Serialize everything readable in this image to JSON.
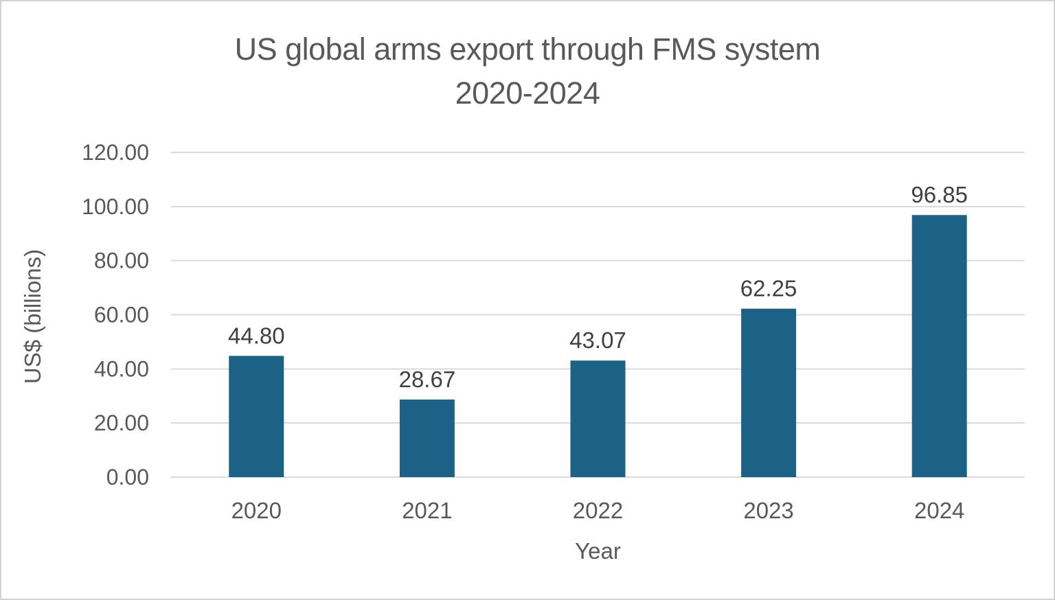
{
  "chart_data": {
    "type": "bar",
    "title": "US global arms export through FMS system",
    "title_line2": "2020-2024",
    "xlabel": "Year",
    "ylabel": "US$ (billions)",
    "categories": [
      "2020",
      "2021",
      "2022",
      "2023",
      "2024"
    ],
    "values": [
      44.8,
      28.67,
      43.07,
      62.25,
      96.85
    ],
    "data_labels": [
      "44.80",
      "28.67",
      "43.07",
      "62.25",
      "96.85"
    ],
    "ylim": [
      0,
      120
    ],
    "ytick_step": 20,
    "ytick_labels": [
      "0.00",
      "20.00",
      "40.00",
      "60.00",
      "80.00",
      "100.00",
      "120.00"
    ],
    "grid": true,
    "legend": "none",
    "colors": {
      "bar": "#1B6286",
      "gridline": "#D9D9D9",
      "axis_text": "#595959",
      "data_label_text": "#404040",
      "title_text": "#595959",
      "border": "#D2D2D2"
    }
  }
}
